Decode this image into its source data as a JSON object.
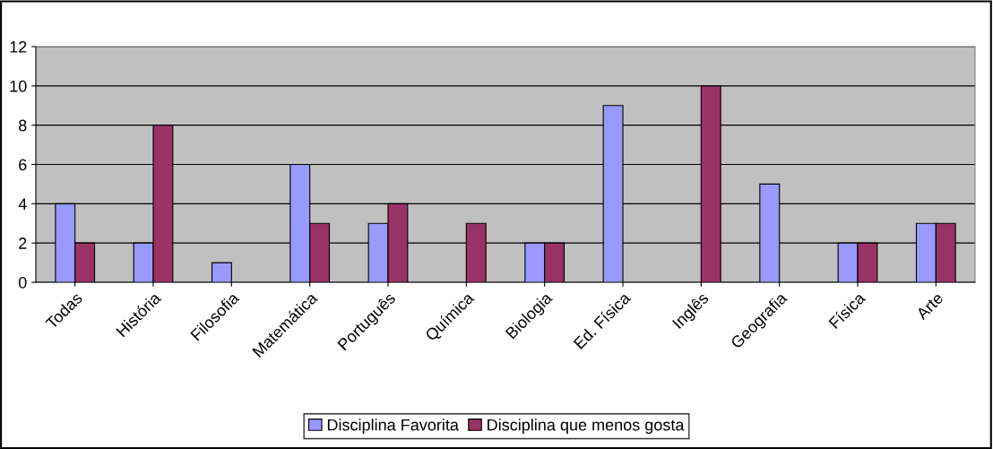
{
  "chart_data": {
    "type": "bar",
    "categories": [
      "Todas",
      "História",
      "Filosofia",
      "Matemática",
      "Português",
      "Química",
      "Biologia",
      "Ed. Física",
      "Inglês",
      "Geografia",
      "Física",
      "Arte"
    ],
    "series": [
      {
        "name": "Disciplina Favorita",
        "color": "#9999ff",
        "values": [
          4,
          2,
          1,
          6,
          3,
          null,
          2,
          9,
          null,
          5,
          2,
          3
        ]
      },
      {
        "name": "Disciplina que menos gosta",
        "color": "#993366",
        "values": [
          2,
          8,
          null,
          3,
          4,
          3,
          2,
          null,
          10,
          null,
          2,
          3
        ]
      }
    ],
    "ylim": [
      0,
      12
    ],
    "yticks": [
      0,
      2,
      4,
      6,
      8,
      10,
      12
    ],
    "grid": "y",
    "legend": "bottom"
  }
}
